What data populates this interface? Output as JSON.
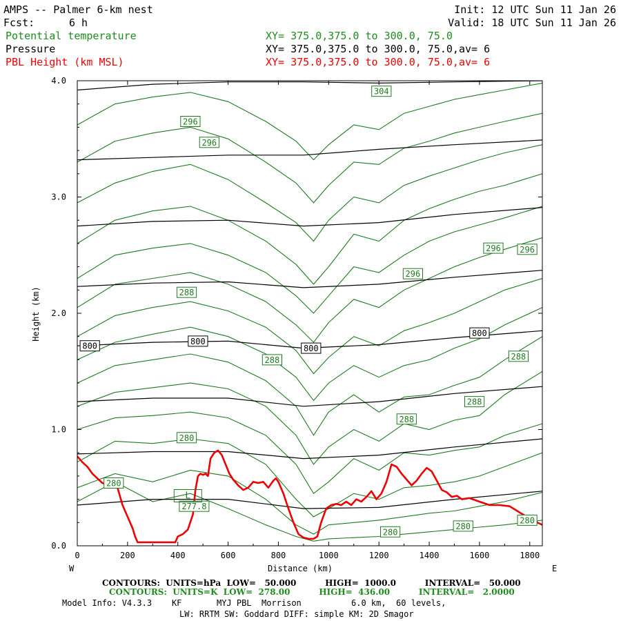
{
  "header": {
    "title": "AMPS -- Palmer 6-km nest",
    "fcst_label": "Fcst:",
    "fcst_value": "6 h",
    "init": "Init: 12 UTC Sun 11 Jan 26",
    "valid": "Valid: 18 UTC Sun 11 Jan 26",
    "var1_name": "Potential temperature",
    "var1_xy": "XY= 375.0,375.0 to 300.0, 75.0",
    "var2_name": "Pressure",
    "var2_xy": "XY= 375.0,375.0 to 300.0, 75.0,av=  6",
    "var3_name": "PBL Height (km MSL)",
    "var3_xy": "XY= 375.0,375.0 to 300.0, 75.0,av=  6"
  },
  "colors": {
    "theta": "#1e7a1e",
    "pressure": "#000000",
    "pbl": "#ee0000",
    "header_green": "#1e8c1e",
    "header_red": "#ee0000"
  },
  "footer": {
    "line1": "CONTOURS:  UNITS=hPa  LOW=   50.000          HIGH=  1000.0          INTERVAL=   50.000",
    "line2": "CONTOURS:  UNITS=K  LOW=  278.00          HIGH=  436.00          INTERVAL=   2.0000",
    "model_info": "Model Info: V4.3.3    KF       MYJ PBL  Morrison          6.0 km,  60 levels,",
    "physics": "LW: RRTM SW: Goddard DIFF: simple KM: 2D Smagor"
  },
  "chart_data": {
    "type": "line",
    "title": "AMPS -- Palmer 6-km nest",
    "xlabel": "Distance (km)",
    "ylabel": "Height (km)",
    "xlim": [
      0,
      1850
    ],
    "ylim": [
      0,
      4
    ],
    "x_ticks": [
      0,
      200,
      400,
      600,
      800,
      1000,
      1200,
      1400,
      1600,
      1800
    ],
    "x_tick_labels": [
      "0",
      "200",
      "400",
      "600",
      "800",
      "1000",
      "1200",
      "1400",
      "1600",
      "1800"
    ],
    "y_ticks": [
      0,
      1,
      2,
      3,
      4
    ],
    "y_tick_labels": [
      "0.0",
      "1.0",
      "2.0",
      "3.0",
      "4.0"
    ],
    "west_label": "W",
    "east_label": "E",
    "pressure_contours": [
      {
        "name": "pressure",
        "x": [
          0,
          300,
          600,
          900,
          1200,
          1500,
          1850
        ],
        "y": [
          3.92,
          3.97,
          3.99,
          3.99,
          3.98,
          3.99,
          4.0
        ]
      },
      {
        "name": "pressure",
        "x": [
          0,
          300,
          600,
          900,
          1200,
          1500,
          1850
        ],
        "y": [
          3.32,
          3.34,
          3.36,
          3.36,
          3.41,
          3.45,
          3.49
        ]
      },
      {
        "name": "pressure",
        "x": [
          0,
          300,
          600,
          900,
          1200,
          1500,
          1850
        ],
        "y": [
          2.75,
          2.79,
          2.8,
          2.75,
          2.78,
          2.85,
          2.91
        ]
      },
      {
        "name": "pressure",
        "x": [
          0,
          300,
          600,
          900,
          1200,
          1500,
          1850
        ],
        "y": [
          2.23,
          2.26,
          2.27,
          2.22,
          2.25,
          2.31,
          2.37
        ]
      },
      {
        "name": "pressure",
        "x": [
          0,
          300,
          600,
          900,
          1200,
          1500,
          1850
        ],
        "y": [
          1.72,
          1.75,
          1.76,
          1.7,
          1.73,
          1.79,
          1.85
        ]
      },
      {
        "name": "pressure",
        "x": [
          0,
          300,
          600,
          900,
          1200,
          1500,
          1850
        ],
        "y": [
          1.24,
          1.27,
          1.27,
          1.2,
          1.24,
          1.31,
          1.37
        ]
      },
      {
        "name": "pressure",
        "x": [
          0,
          300,
          600,
          900,
          1200,
          1500,
          1850
        ],
        "y": [
          0.79,
          0.81,
          0.81,
          0.75,
          0.78,
          0.85,
          0.92
        ]
      },
      {
        "name": "pressure",
        "x": [
          0,
          300,
          600,
          900,
          1200,
          1500,
          1850
        ],
        "y": [
          0.35,
          0.4,
          0.4,
          0.32,
          0.33,
          0.4,
          0.47
        ]
      }
    ],
    "theta_contours": [
      {
        "name": "theta",
        "x": [
          0,
          150,
          300,
          450,
          600,
          750,
          870,
          940,
          1000,
          1100,
          1200,
          1300,
          1400,
          1500,
          1600,
          1700,
          1850
        ],
        "y": [
          0.38,
          0.55,
          0.38,
          0.45,
          0.32,
          0.18,
          0.08,
          0.04,
          0.06,
          0.07,
          0.08,
          0.1,
          0.12,
          0.14,
          0.16,
          0.18,
          0.22
        ]
      },
      {
        "name": "theta",
        "x": [
          0,
          150,
          300,
          450,
          600,
          750,
          870,
          940,
          1000,
          1100,
          1200,
          1300,
          1400,
          1500,
          1600,
          1700,
          1850
        ],
        "y": [
          0.5,
          0.62,
          0.55,
          0.65,
          0.6,
          0.4,
          0.18,
          0.1,
          0.18,
          0.2,
          0.22,
          0.25,
          0.28,
          0.3,
          0.34,
          0.38,
          0.46
        ]
      },
      {
        "name": "theta",
        "x": [
          0,
          150,
          300,
          450,
          600,
          750,
          870,
          940,
          1000,
          1100,
          1200,
          1300,
          1400,
          1500,
          1600,
          1700,
          1850
        ],
        "y": [
          0.72,
          0.9,
          0.88,
          0.92,
          0.88,
          0.7,
          0.4,
          0.25,
          0.32,
          0.45,
          0.4,
          0.5,
          0.52,
          0.55,
          0.6,
          0.68,
          0.8
        ]
      },
      {
        "name": "theta",
        "x": [
          0,
          150,
          300,
          450,
          600,
          750,
          870,
          940,
          1000,
          1100,
          1200,
          1300,
          1400,
          1500,
          1600,
          1700,
          1850
        ],
        "y": [
          1.0,
          1.1,
          1.12,
          1.15,
          1.1,
          0.95,
          0.7,
          0.45,
          0.55,
          0.75,
          0.65,
          0.8,
          0.78,
          0.82,
          0.85,
          0.95,
          1.05
        ]
      },
      {
        "name": "theta",
        "x": [
          0,
          150,
          300,
          450,
          600,
          750,
          870,
          940,
          1000,
          1100,
          1200,
          1300,
          1400,
          1500,
          1600,
          1700,
          1850
        ],
        "y": [
          1.2,
          1.32,
          1.36,
          1.4,
          1.35,
          1.2,
          0.95,
          0.7,
          0.85,
          1.0,
          0.9,
          1.05,
          1.0,
          1.08,
          1.12,
          1.3,
          1.5
        ]
      },
      {
        "name": "theta",
        "x": [
          0,
          150,
          300,
          450,
          600,
          750,
          870,
          940,
          1000,
          1100,
          1200,
          1300,
          1400,
          1500,
          1600,
          1700,
          1850
        ],
        "y": [
          1.4,
          1.55,
          1.6,
          1.65,
          1.58,
          1.42,
          1.2,
          0.95,
          1.15,
          1.3,
          1.15,
          1.28,
          1.3,
          1.38,
          1.45,
          1.6,
          1.8
        ]
      },
      {
        "name": "theta",
        "x": [
          0,
          150,
          300,
          450,
          600,
          750,
          870,
          940,
          1000,
          1100,
          1200,
          1300,
          1400,
          1500,
          1600,
          1700,
          1850
        ],
        "y": [
          1.6,
          1.75,
          1.82,
          1.88,
          1.8,
          1.65,
          1.45,
          1.25,
          1.4,
          1.55,
          1.45,
          1.55,
          1.6,
          1.7,
          1.78,
          1.9,
          2.05
        ]
      },
      {
        "name": "theta",
        "x": [
          0,
          150,
          300,
          450,
          600,
          750,
          870,
          940,
          1000,
          1100,
          1200,
          1300,
          1400,
          1500,
          1600,
          1700,
          1850
        ],
        "y": [
          1.8,
          1.98,
          2.05,
          2.1,
          2.02,
          1.88,
          1.68,
          1.48,
          1.62,
          1.8,
          1.72,
          1.85,
          1.92,
          2.0,
          2.1,
          2.2,
          2.3
        ]
      },
      {
        "name": "theta",
        "x": [
          0,
          150,
          300,
          450,
          600,
          750,
          870,
          940,
          1000,
          1100,
          1200,
          1300,
          1400,
          1500,
          1600,
          1700,
          1850
        ],
        "y": [
          2.05,
          2.25,
          2.3,
          2.35,
          2.25,
          2.1,
          1.9,
          1.75,
          1.92,
          2.12,
          2.05,
          2.2,
          2.3,
          2.4,
          2.48,
          2.55,
          2.65
        ]
      },
      {
        "name": "theta",
        "x": [
          0,
          150,
          300,
          450,
          600,
          750,
          870,
          940,
          1000,
          1100,
          1200,
          1300,
          1400,
          1500,
          1600,
          1700,
          1850
        ],
        "y": [
          2.3,
          2.5,
          2.56,
          2.6,
          2.5,
          2.35,
          2.15,
          2.0,
          2.15,
          2.4,
          2.35,
          2.5,
          2.62,
          2.7,
          2.76,
          2.82,
          2.92
        ]
      },
      {
        "name": "theta",
        "x": [
          0,
          150,
          300,
          450,
          600,
          750,
          870,
          940,
          1000,
          1100,
          1200,
          1300,
          1400,
          1500,
          1600,
          1700,
          1850
        ],
        "y": [
          2.6,
          2.8,
          2.88,
          2.92,
          2.8,
          2.62,
          2.42,
          2.25,
          2.4,
          2.68,
          2.62,
          2.8,
          2.9,
          2.98,
          3.05,
          3.1,
          3.2
        ]
      },
      {
        "name": "theta",
        "x": [
          0,
          150,
          300,
          450,
          600,
          750,
          870,
          940,
          1000,
          1100,
          1200,
          1300,
          1400,
          1500,
          1600,
          1700,
          1850
        ],
        "y": [
          2.95,
          3.12,
          3.22,
          3.28,
          3.15,
          2.95,
          2.78,
          2.62,
          2.8,
          3.0,
          2.95,
          3.1,
          3.18,
          3.25,
          3.32,
          3.38,
          3.45
        ]
      },
      {
        "name": "theta",
        "x": [
          0,
          150,
          300,
          450,
          600,
          750,
          870,
          940,
          1000,
          1100,
          1200,
          1300,
          1400,
          1500,
          1600,
          1700,
          1850
        ],
        "y": [
          3.3,
          3.48,
          3.55,
          3.6,
          3.5,
          3.3,
          3.12,
          2.95,
          3.1,
          3.3,
          3.28,
          3.42,
          3.48,
          3.55,
          3.6,
          3.65,
          3.72
        ]
      },
      {
        "name": "theta",
        "x": [
          0,
          150,
          300,
          450,
          600,
          750,
          870,
          940,
          1000,
          1100,
          1200,
          1300,
          1400,
          1500,
          1600,
          1700,
          1850
        ],
        "y": [
          3.62,
          3.8,
          3.86,
          3.9,
          3.82,
          3.65,
          3.48,
          3.32,
          3.45,
          3.62,
          3.58,
          3.72,
          3.78,
          3.84,
          3.88,
          3.92,
          3.98
        ]
      }
    ],
    "theta_labels": [
      {
        "text": "296",
        "x": 450,
        "y": 3.65
      },
      {
        "text": "296",
        "x": 525,
        "y": 3.47
      },
      {
        "text": "304",
        "x": 1210,
        "y": 3.91
      },
      {
        "text": "296",
        "x": 1655,
        "y": 2.56
      },
      {
        "text": "296",
        "x": 1790,
        "y": 2.55
      },
      {
        "text": "296",
        "x": 1335,
        "y": 2.34
      },
      {
        "text": "288",
        "x": 435,
        "y": 2.18
      },
      {
        "text": "288",
        "x": 775,
        "y": 1.6
      },
      {
        "text": "288",
        "x": 1755,
        "y": 1.63
      },
      {
        "text": "288",
        "x": 1580,
        "y": 1.24
      },
      {
        "text": "288",
        "x": 1310,
        "y": 1.09
      },
      {
        "text": "280",
        "x": 435,
        "y": 0.93
      },
      {
        "text": "280",
        "x": 145,
        "y": 0.54
      },
      {
        "text": "277.8",
        "x": 465,
        "y": 0.34
      },
      {
        "text": "280",
        "x": 1245,
        "y": 0.12
      },
      {
        "text": "280",
        "x": 1535,
        "y": 0.17
      },
      {
        "text": "280",
        "x": 1790,
        "y": 0.22
      }
    ],
    "pressure_labels": [
      {
        "text": "800",
        "x": 50,
        "y": 1.72
      },
      {
        "text": "800",
        "x": 480,
        "y": 1.76
      },
      {
        "text": "800",
        "x": 930,
        "y": 1.7
      },
      {
        "text": "800",
        "x": 1600,
        "y": 1.83
      }
    ],
    "low_label": {
      "text": "L",
      "x": 440,
      "y": 0.43
    },
    "pbl_height": {
      "name": "PBL Height (km MSL)",
      "x": [
        0,
        20,
        40,
        60,
        80,
        100,
        120,
        140,
        160,
        180,
        200,
        220,
        230,
        240,
        260,
        300,
        340,
        370,
        390,
        400,
        420,
        440,
        460,
        470,
        480,
        490,
        500,
        510,
        520,
        530,
        545,
        560,
        575,
        590,
        605,
        620,
        640,
        660,
        680,
        700,
        720,
        740,
        760,
        780,
        790,
        800,
        820,
        840,
        860,
        880,
        900,
        920,
        940,
        955,
        970,
        990,
        1010,
        1030,
        1050,
        1070,
        1090,
        1110,
        1130,
        1150,
        1170,
        1190,
        1210,
        1230,
        1250,
        1270,
        1290,
        1310,
        1330,
        1350,
        1370,
        1390,
        1410,
        1430,
        1450,
        1470,
        1490,
        1510,
        1530,
        1560,
        1600,
        1640,
        1680,
        1720,
        1750,
        1780,
        1810,
        1840,
        1850
      ],
      "y": [
        0.77,
        0.72,
        0.68,
        0.62,
        0.58,
        0.54,
        0.52,
        0.53,
        0.5,
        0.35,
        0.25,
        0.15,
        0.08,
        0.03,
        0.03,
        0.03,
        0.03,
        0.03,
        0.03,
        0.08,
        0.1,
        0.14,
        0.27,
        0.48,
        0.6,
        0.62,
        0.61,
        0.62,
        0.6,
        0.75,
        0.8,
        0.82,
        0.78,
        0.7,
        0.62,
        0.57,
        0.52,
        0.48,
        0.5,
        0.55,
        0.54,
        0.55,
        0.5,
        0.56,
        0.58,
        0.55,
        0.45,
        0.32,
        0.2,
        0.1,
        0.07,
        0.06,
        0.06,
        0.08,
        0.2,
        0.32,
        0.35,
        0.36,
        0.35,
        0.38,
        0.35,
        0.4,
        0.38,
        0.42,
        0.47,
        0.4,
        0.45,
        0.55,
        0.7,
        0.68,
        0.62,
        0.57,
        0.52,
        0.56,
        0.62,
        0.67,
        0.64,
        0.56,
        0.48,
        0.46,
        0.42,
        0.43,
        0.4,
        0.41,
        0.38,
        0.35,
        0.35,
        0.34,
        0.3,
        0.26,
        0.22,
        0.19,
        0.18
      ]
    }
  }
}
